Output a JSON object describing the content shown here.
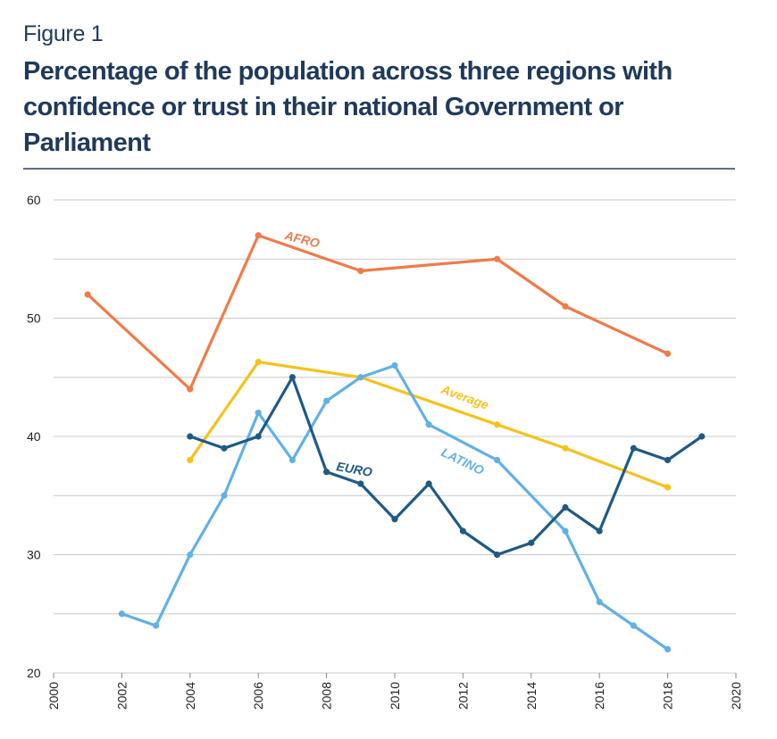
{
  "figure_label": "Figure 1",
  "title": "Percentage of the population across three regions with confidence or trust in their national Government or Parliament",
  "colors": {
    "afro": "#ef7b4a",
    "average": "#f5c21c",
    "latino": "#62b0e6",
    "euro": "#1f5a84",
    "grid": "#c8c8c8",
    "rule": "#5d6e8a",
    "title": "#1f3a5a"
  },
  "chart_data": {
    "type": "line",
    "title": "Percentage of the population across three regions with confidence or trust in their national Government or Parliament",
    "xlabel": "",
    "ylabel": "",
    "xlim": [
      2000,
      2020
    ],
    "ylim": [
      20,
      60
    ],
    "x_ticks": [
      "2000",
      "2002",
      "2004",
      "2006",
      "2008",
      "2010",
      "2012",
      "2014",
      "2016",
      "2018",
      "2020"
    ],
    "y_ticks": [
      "20",
      "30",
      "40",
      "50",
      "60"
    ],
    "grid": true,
    "series": [
      {
        "name": "AFRO",
        "color": "#ef7b4a",
        "points": [
          [
            2001,
            52
          ],
          [
            2004,
            44
          ],
          [
            2006,
            57
          ],
          [
            2009,
            54
          ],
          [
            2013,
            55
          ],
          [
            2015,
            51
          ],
          [
            2018,
            47
          ]
        ]
      },
      {
        "name": "Average",
        "color": "#f5c21c",
        "points": [
          [
            2004,
            38
          ],
          [
            2006,
            46.3
          ],
          [
            2009,
            45
          ],
          [
            2013,
            41
          ],
          [
            2015,
            39
          ],
          [
            2018,
            35.7
          ]
        ]
      },
      {
        "name": "LATINO",
        "color": "#62b0e6",
        "points": [
          [
            2002,
            25
          ],
          [
            2003,
            24
          ],
          [
            2004,
            30
          ],
          [
            2005,
            35
          ],
          [
            2006,
            42
          ],
          [
            2007,
            38
          ],
          [
            2008,
            43
          ],
          [
            2009,
            45
          ],
          [
            2010,
            46
          ],
          [
            2011,
            41
          ],
          [
            2013,
            38
          ],
          [
            2015,
            32
          ],
          [
            2016,
            26
          ],
          [
            2017,
            24
          ],
          [
            2018,
            22
          ]
        ]
      },
      {
        "name": "EURO",
        "color": "#1f5a84",
        "points": [
          [
            2004,
            40
          ],
          [
            2005,
            39
          ],
          [
            2006,
            40
          ],
          [
            2007,
            45
          ],
          [
            2008,
            37
          ],
          [
            2009,
            36
          ],
          [
            2010,
            33
          ],
          [
            2011,
            36
          ],
          [
            2012,
            32
          ],
          [
            2013,
            30
          ],
          [
            2014,
            31
          ],
          [
            2015,
            34
          ],
          [
            2016,
            32
          ],
          [
            2017,
            39
          ],
          [
            2018,
            38
          ],
          [
            2019,
            40
          ]
        ]
      }
    ]
  }
}
